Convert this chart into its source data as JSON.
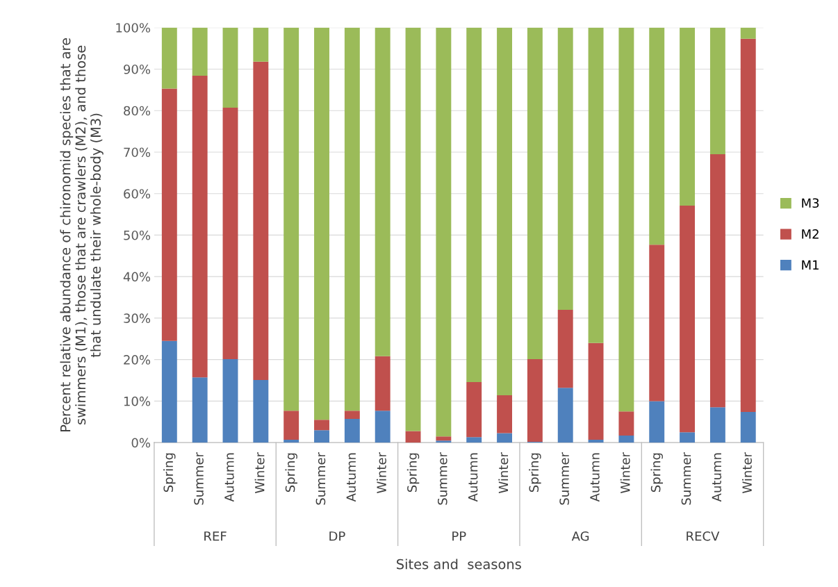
{
  "chart_data": {
    "type": "bar",
    "stacked": true,
    "xlabel": "Sites and  seasons",
    "ylabel": "Percent relative abundance of chironomid species that are\nswimmers (M1), those that are crawlers (M2), and those\nthat undulate their whole-body (M3)",
    "categories": [
      "Spring",
      "Summer",
      "Autumn",
      "Winter",
      "Spring",
      "Summer",
      "Autumn",
      "Winter",
      "Spring",
      "Summer",
      "Autumn",
      "Winter",
      "Spring",
      "Summer",
      "Autumn",
      "Winter",
      "Spring",
      "Summer",
      "Autumn",
      "Winter"
    ],
    "annotations": [
      "REF",
      "DP",
      "PP",
      "AG",
      "RECV"
    ],
    "series": [
      {
        "name": "M1",
        "color": "#4f81bd",
        "values": [
          24.5,
          15.7,
          20.1,
          15.1,
          0.7,
          3.0,
          5.7,
          7.7,
          0,
          0.5,
          1.3,
          2.3,
          0.2,
          13.2,
          0.7,
          1.7,
          10.0,
          2.5,
          8.5,
          7.4
        ]
      },
      {
        "name": "M2",
        "color": "#c0504d",
        "values": [
          60.8,
          72.7,
          60.6,
          76.7,
          7.0,
          2.5,
          2.0,
          13.1,
          2.8,
          1.0,
          13.3,
          9.1,
          19.9,
          18.8,
          23.3,
          5.8,
          37.7,
          54.6,
          61.0,
          89.9
        ]
      },
      {
        "name": "M3",
        "color": "#9bbb59",
        "values": [
          14.7,
          11.6,
          19.3,
          8.2,
          92.3,
          94.5,
          92.3,
          79.2,
          97.2,
          98.5,
          85.4,
          88.6,
          79.9,
          68.0,
          76.0,
          92.5,
          52.3,
          42.9,
          30.5,
          2.7
        ]
      }
    ],
    "ylim": [
      0,
      100
    ],
    "yticks": [
      {
        "value": 0,
        "label": "0%"
      },
      {
        "value": 10,
        "label": "10%"
      },
      {
        "value": 20,
        "label": "20%"
      },
      {
        "value": 30,
        "label": "30%"
      },
      {
        "value": 40,
        "label": "40%"
      },
      {
        "value": 50,
        "label": "50%"
      },
      {
        "value": 60,
        "label": "60%"
      },
      {
        "value": 70,
        "label": "70%"
      },
      {
        "value": 80,
        "label": "80%"
      },
      {
        "value": 90,
        "label": "90%"
      },
      {
        "value": 100,
        "label": "100%"
      }
    ],
    "grid": "y",
    "legend": "right"
  }
}
